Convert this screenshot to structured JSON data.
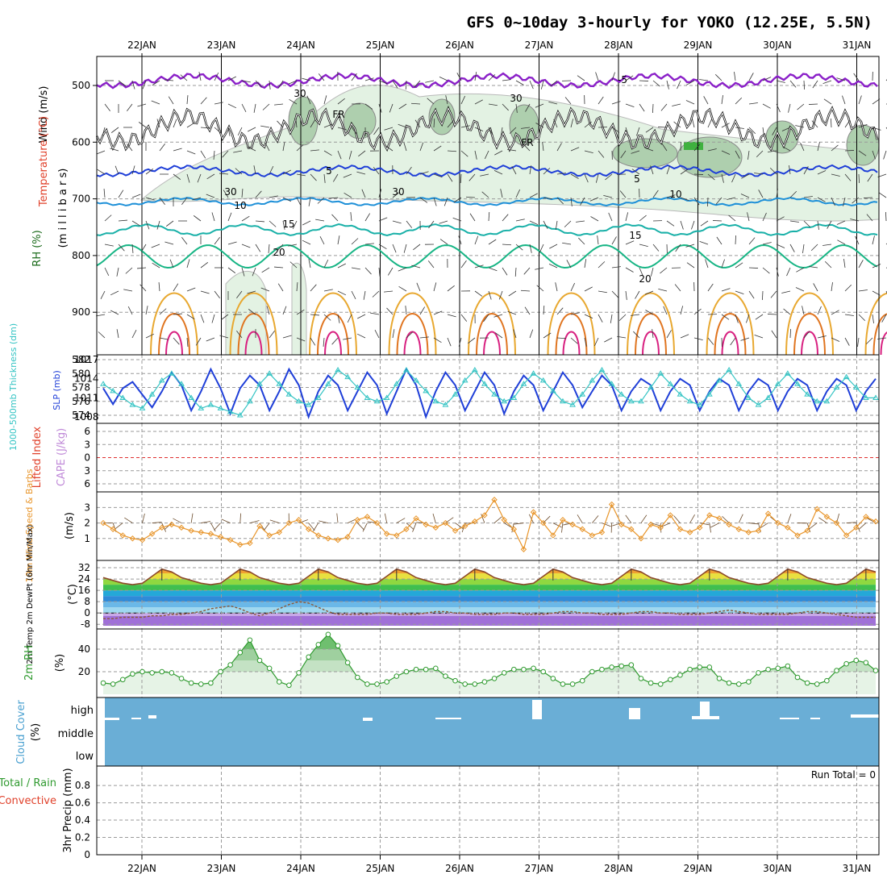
{
  "title": "GFS 0~10day 3-hourly for YOKO (12.25E, 5.5N)",
  "dates": [
    "22JAN",
    "23JAN",
    "24JAN",
    "25JAN",
    "26JAN",
    "27JAN",
    "28JAN",
    "29JAN",
    "30JAN",
    "31JAN"
  ],
  "panels": {
    "upper": {
      "ylabel_wind": "Wind (m/s)",
      "ylabel_temp": "Temperature (°C)",
      "ylabel_rh": "RH (%)",
      "ylabel_pressure": "(m i l l i b a r s)",
      "ticks": [
        "500",
        "600",
        "700",
        "800",
        "900"
      ],
      "contour_labels": [
        "-5",
        "FR",
        "FR",
        "5",
        "5",
        "10",
        "10",
        "15",
        "15",
        "20",
        "20",
        "30",
        "30",
        "30",
        "30"
      ]
    },
    "thickness": {
      "ylabel_left": "1000-500mb Thickness (dm)",
      "ylabel_right": "SLP (mb)",
      "left_ticks": [
        "582",
        "580",
        "578",
        "576",
        "574"
      ],
      "right_ticks": [
        "1017",
        "1014",
        "1011",
        "1008"
      ]
    },
    "cape": {
      "ylabel_left": "Lifted Index",
      "ylabel_right": "CAPE (J/kg)",
      "ticks": [
        "-6",
        "-3",
        "0",
        "3",
        "6"
      ]
    },
    "wind10m": {
      "ylabel": "10m Wind Speed & Barbs",
      "unit": "(m/s)",
      "ticks": [
        "3",
        "2",
        "1"
      ]
    },
    "temp2m": {
      "ylabel": "2m Temp 2m DewPt (6hr Min/Max)",
      "unit": "(°C)",
      "ticks": [
        "32",
        "24",
        "16",
        "8",
        "0",
        "-8"
      ]
    },
    "rh2m": {
      "ylabel": "2m RH",
      "unit": "(%)",
      "ticks": [
        "40",
        "20"
      ]
    },
    "cloud": {
      "ylabel": "Cloud Cover",
      "unit": "(%)",
      "levels": [
        "high",
        "middle",
        "low"
      ]
    },
    "precip": {
      "ylabel_a": "Total / Rain",
      "ylabel_b": "Convective",
      "ylabel_c": "3hr Precip (mm)",
      "ticks": [
        "0.8",
        "0.6",
        "0.4",
        "0.2",
        "0"
      ],
      "run_total": "Run Total = 0"
    }
  },
  "chart_data": [
    {
      "type": "line",
      "title": "1000-500mb Thickness (dm) / SLP (mb)",
      "series": [
        {
          "name": "SLP (mb)",
          "color": "#1f3fd8",
          "values": [
            1012.5,
            1010.0,
            1012.5,
            1013.5,
            1011.5,
            1009.5,
            1012.0,
            1015.0,
            1013.0,
            1009.0,
            1012.0,
            1015.5,
            1012.5,
            1008.5,
            1012.5,
            1014.5,
            1013.0,
            1009.0,
            1012.0,
            1015.5,
            1013.0,
            1008.0,
            1012.0,
            1014.5,
            1013.0,
            1009.0,
            1012.0,
            1015.0,
            1013.0,
            1008.5,
            1012.0,
            1015.5,
            1013.0,
            1008.0,
            1012.0,
            1015.0,
            1013.0,
            1009.0,
            1012.0,
            1015.0,
            1013.0,
            1008.5,
            1012.0,
            1014.5,
            1013.0,
            1009.0,
            1012.0,
            1015.0,
            1013.0,
            1009.5,
            1012.0,
            1014.5,
            1013.0,
            1009.0,
            1012.0,
            1014.0,
            1013.0,
            1009.0,
            1012.0,
            1014.0,
            1013.0,
            1009.0,
            1012.0,
            1014.0,
            1013.0,
            1009.0,
            1012.0,
            1014.0,
            1013.0,
            1009.0,
            1012.0,
            1014.0,
            1013.0,
            1009.0,
            1012.0,
            1014.0,
            1013.0,
            1009.0,
            1012.0,
            1014.0
          ]
        },
        {
          "name": "1000-500mb Thickness (dm)",
          "color": "#35c4c4",
          "values": [
            578.5,
            577.5,
            576.5,
            575.5,
            575.0,
            577.0,
            579.0,
            580.0,
            578.5,
            576.5,
            575.0,
            575.5,
            575.0,
            574.5,
            574.0,
            576.0,
            578.5,
            580.0,
            578.5,
            577.0,
            576.0,
            575.5,
            576.5,
            578.5,
            580.5,
            579.5,
            578.0,
            576.5,
            576.0,
            576.5,
            578.5,
            580.5,
            579.0,
            577.5,
            576.0,
            575.5,
            577.0,
            579.0,
            580.5,
            578.5,
            577.0,
            576.0,
            576.5,
            578.5,
            580.0,
            579.0,
            577.5,
            576.0,
            575.5,
            577.0,
            579.0,
            580.5,
            578.5,
            577.0,
            576.0,
            576.0,
            578.0,
            580.0,
            578.5,
            577.0,
            576.0,
            575.5,
            577.0,
            579.0,
            580.5,
            578.5,
            576.5,
            575.5,
            576.5,
            578.5,
            580.0,
            578.5,
            577.0,
            576.0,
            576.0,
            578.0,
            579.5,
            578.0,
            576.5,
            576.5
          ]
        }
      ],
      "ylim_left": [
        573,
        582
      ],
      "ylim_right": [
        1007,
        1017
      ]
    },
    {
      "type": "line",
      "title": "10m Wind Speed & Barbs (m/s)",
      "series": [
        {
          "name": "10m Wind Speed",
          "color": "#e8952a",
          "values": [
            2.0,
            1.6,
            1.2,
            1.0,
            0.9,
            1.3,
            1.7,
            1.9,
            1.7,
            1.5,
            1.4,
            1.3,
            1.1,
            0.9,
            0.6,
            0.7,
            1.8,
            1.2,
            1.4,
            2.0,
            2.2,
            1.6,
            1.2,
            1.0,
            0.9,
            1.1,
            2.2,
            2.4,
            2.0,
            1.3,
            1.2,
            1.6,
            2.3,
            1.9,
            1.7,
            2.0,
            1.5,
            1.8,
            2.1,
            2.5,
            3.5,
            2.2,
            1.6,
            0.3,
            2.7,
            2.0,
            1.2,
            2.2,
            1.9,
            1.6,
            1.2,
            1.4,
            3.2,
            1.9,
            1.6,
            1.0,
            1.9,
            1.7,
            2.5,
            1.6,
            1.4,
            1.7,
            2.5,
            2.3,
            1.9,
            1.6,
            1.4,
            1.5,
            2.6,
            2.0,
            1.7,
            1.2,
            1.5,
            2.9,
            2.4,
            2.0,
            1.2,
            1.7,
            2.4,
            2.1
          ]
        }
      ],
      "ylim": [
        0,
        3.8
      ]
    },
    {
      "type": "area",
      "title": "2m Temp / 2m DewPt (°C)",
      "series": [
        {
          "name": "2m Temp",
          "color": "#8c4a2a",
          "values": [
            25,
            23,
            21,
            20,
            21,
            26,
            31,
            29,
            25,
            23,
            21,
            20,
            21,
            26,
            31,
            29,
            25,
            23,
            21,
            20,
            21,
            26,
            31,
            29,
            25,
            23,
            21,
            20,
            21,
            26,
            31,
            29,
            25,
            23,
            21,
            20,
            21,
            26,
            31,
            29,
            25,
            23,
            21,
            20,
            21,
            26,
            31,
            29,
            25,
            23,
            21,
            20,
            21,
            26,
            31,
            29,
            25,
            23,
            21,
            20,
            21,
            26,
            31,
            29,
            25,
            23,
            21,
            20,
            21,
            26,
            31,
            29,
            25,
            23,
            21,
            20,
            21,
            26,
            31,
            29
          ]
        },
        {
          "name": "2m DewPt",
          "color": "#8c5a3a",
          "values": [
            -4,
            -4,
            -3,
            -3,
            -3,
            -2,
            -2,
            -1,
            -1,
            0,
            1,
            3,
            4,
            5,
            3,
            0,
            -2,
            0,
            3,
            6,
            8,
            7,
            4,
            1,
            -1,
            -1,
            -1,
            -1,
            0,
            0,
            -1,
            -1,
            -1,
            0,
            1,
            1,
            0,
            0,
            -1,
            -1,
            -1,
            0,
            0,
            -1,
            -1,
            -1,
            0,
            1,
            1,
            0,
            0,
            -1,
            -1,
            -1,
            0,
            1,
            1,
            0,
            0,
            -1,
            -1,
            -1,
            0,
            1,
            2,
            1,
            0,
            -1,
            -1,
            -1,
            -1,
            0,
            1,
            1,
            0,
            -1,
            -2,
            -3,
            -3,
            -3
          ]
        }
      ],
      "ylim": [
        -9,
        36
      ]
    },
    {
      "type": "area",
      "title": "2m RH (%)",
      "series": [
        {
          "name": "2m RH",
          "color": "#2f9a2f",
          "values": [
            10,
            9,
            13,
            18,
            20,
            19,
            20,
            19,
            14,
            10,
            9,
            10,
            20,
            26,
            37,
            48,
            30,
            23,
            11,
            8,
            19,
            33,
            44,
            53,
            43,
            28,
            15,
            9,
            9,
            11,
            16,
            20,
            22,
            22,
            23,
            16,
            12,
            9,
            9,
            11,
            14,
            19,
            22,
            22,
            23,
            20,
            14,
            9,
            9,
            12,
            20,
            22,
            24,
            25,
            26,
            14,
            10,
            9,
            13,
            17,
            22,
            24,
            24,
            14,
            10,
            9,
            11,
            19,
            22,
            23,
            25,
            15,
            10,
            9,
            12,
            21,
            27,
            30,
            28,
            21
          ]
        }
      ],
      "ylim": [
        0,
        55
      ]
    },
    {
      "type": "bar",
      "title": "Cloud Cover (%)",
      "categories": [
        "high",
        "middle",
        "low"
      ],
      "values": [
        100,
        100,
        100
      ]
    },
    {
      "type": "bar",
      "title": "3hr Precip (mm)",
      "values": [
        0
      ],
      "ylim": [
        0,
        0.95
      ]
    }
  ]
}
